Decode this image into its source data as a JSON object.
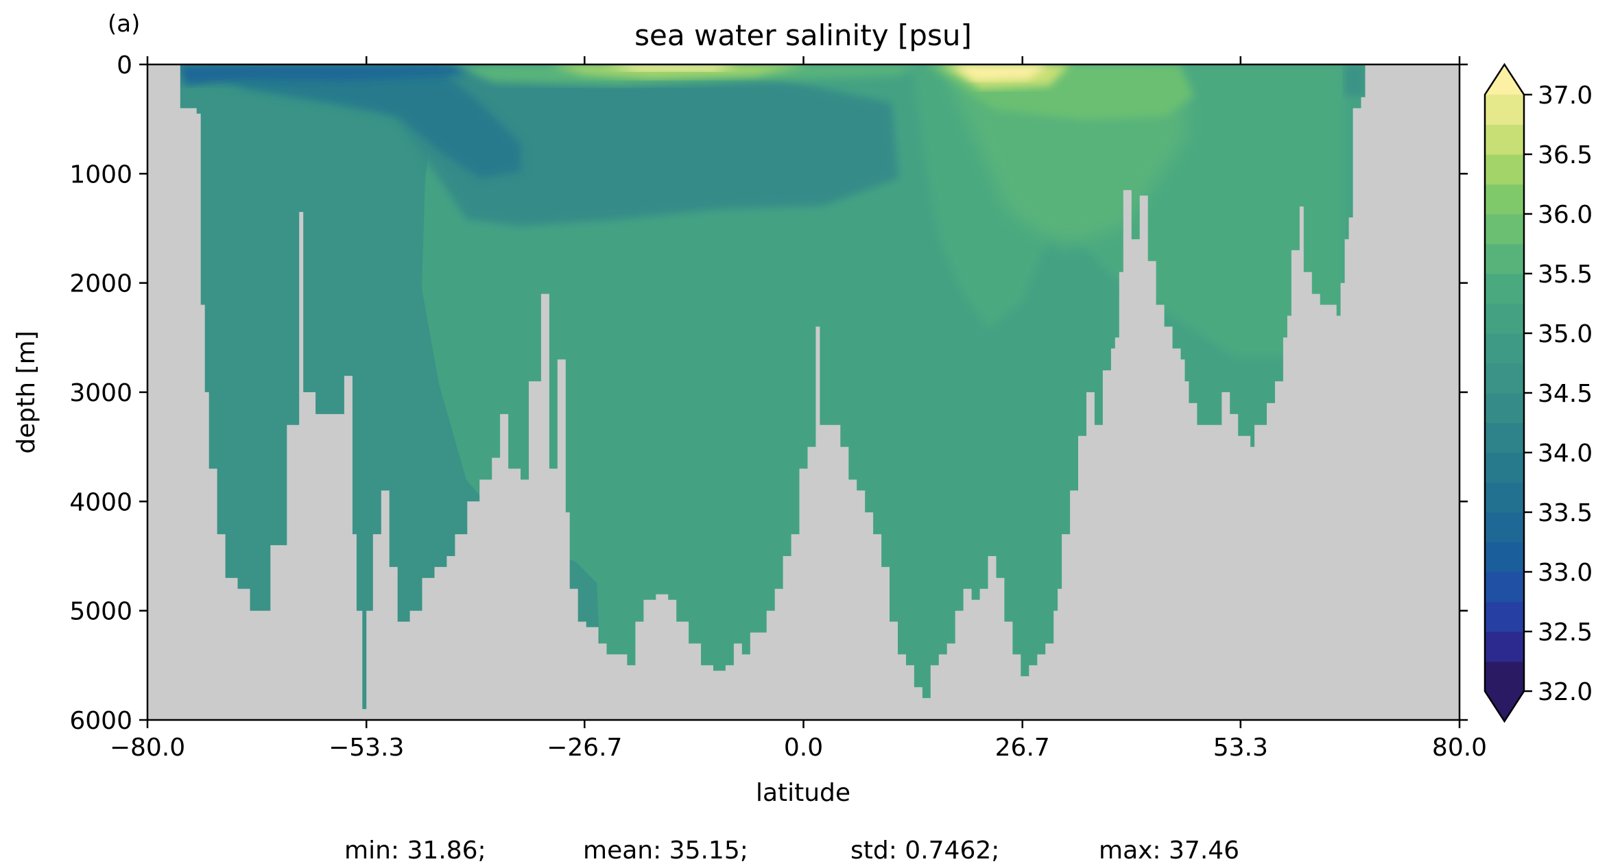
{
  "chart_data": {
    "type": "heatmap",
    "panel_label": "(a)",
    "title": "sea water salinity [psu]",
    "xlabel": "latitude",
    "ylabel": "depth [m]",
    "xlim": [
      -80.0,
      80.0
    ],
    "ylim": [
      6000,
      0
    ],
    "y_inverted": true,
    "xticks": [
      -80.0,
      -53.3,
      -26.7,
      0.0,
      26.7,
      53.3,
      80.0
    ],
    "xtick_labels": [
      "−80.0",
      "−53.3",
      "−26.7",
      "0.0",
      "26.7",
      "53.3",
      "80.0"
    ],
    "yticks": [
      0,
      1000,
      2000,
      3000,
      4000,
      5000,
      6000
    ],
    "ytick_labels": [
      "0",
      "1000",
      "2000",
      "3000",
      "4000",
      "5000",
      "6000"
    ],
    "colorbar": {
      "levels": [
        32.0,
        32.25,
        32.5,
        32.75,
        33.0,
        33.25,
        33.5,
        33.75,
        34.0,
        34.25,
        34.5,
        34.75,
        35.0,
        35.25,
        35.5,
        35.75,
        36.0,
        36.25,
        36.5,
        36.75,
        37.0
      ],
      "ticks": [
        32.0,
        32.5,
        33.0,
        33.5,
        34.0,
        34.5,
        35.0,
        35.5,
        36.0,
        36.5,
        37.0
      ],
      "tick_labels": [
        "32.0",
        "32.5",
        "33.0",
        "33.5",
        "34.0",
        "34.5",
        "35.0",
        "35.5",
        "36.0",
        "36.5",
        "37.0"
      ],
      "colors": [
        "#2a1a63",
        "#2c2a8f",
        "#263fa3",
        "#1f50a3",
        "#1b5e9c",
        "#1e6896",
        "#227190",
        "#277a8c",
        "#2e8289",
        "#358b88",
        "#3a9386",
        "#3e9a85",
        "#44a283",
        "#4ba980",
        "#58b37a",
        "#6abf72",
        "#80c96a",
        "#a3d46a",
        "#c7df75",
        "#e6e88c",
        "#fbf0a3"
      ],
      "extend": "both"
    },
    "mask_color": "#cbcbcb",
    "stats": {
      "min": "min: 31.86;",
      "mean": "mean: 35.15;",
      "std": "std: 0.7462;",
      "max": "max: 37.46"
    },
    "bathymetry": [
      [
        -80.0,
        0
      ],
      [
        -76.5,
        0
      ],
      [
        -76.0,
        400
      ],
      [
        -74.0,
        450
      ],
      [
        -73.5,
        2200
      ],
      [
        -73.0,
        3000
      ],
      [
        -72.5,
        3700
      ],
      [
        -71.5,
        4300
      ],
      [
        -70.5,
        4700
      ],
      [
        -69.0,
        4800
      ],
      [
        -67.5,
        5000
      ],
      [
        -65.5,
        5000
      ],
      [
        -65.0,
        4400
      ],
      [
        -63.0,
        3300
      ],
      [
        -61.5,
        1350
      ],
      [
        -61.0,
        3000
      ],
      [
        -59.5,
        3200
      ],
      [
        -57.5,
        3200
      ],
      [
        -56.0,
        2850
      ],
      [
        -55.0,
        4300
      ],
      [
        -54.5,
        5000
      ],
      [
        -53.8,
        5900
      ],
      [
        -53.3,
        5000
      ],
      [
        -52.5,
        4300
      ],
      [
        -51.5,
        3900
      ],
      [
        -50.5,
        4600
      ],
      [
        -49.5,
        5100
      ],
      [
        -48.0,
        5000
      ],
      [
        -46.5,
        4700
      ],
      [
        -45.0,
        4600
      ],
      [
        -43.5,
        4500
      ],
      [
        -42.5,
        4300
      ],
      [
        -41.0,
        4000
      ],
      [
        -39.5,
        3800
      ],
      [
        -38.0,
        3600
      ],
      [
        -37.0,
        3200
      ],
      [
        -36.0,
        3700
      ],
      [
        -34.5,
        3800
      ],
      [
        -33.5,
        2900
      ],
      [
        -32.0,
        2100
      ],
      [
        -31.0,
        3700
      ],
      [
        -30.0,
        2700
      ],
      [
        -29.0,
        4100
      ],
      [
        -28.5,
        4800
      ],
      [
        -27.5,
        5100
      ],
      [
        -26.5,
        5150
      ],
      [
        -25.0,
        5300
      ],
      [
        -24.0,
        5400
      ],
      [
        -22.5,
        5400
      ],
      [
        -21.5,
        5500
      ],
      [
        -20.5,
        5100
      ],
      [
        -19.5,
        4900
      ],
      [
        -18.0,
        4850
      ],
      [
        -16.5,
        4900
      ],
      [
        -15.5,
        5100
      ],
      [
        -14.0,
        5300
      ],
      [
        -12.5,
        5500
      ],
      [
        -11.0,
        5550
      ],
      [
        -9.5,
        5500
      ],
      [
        -8.5,
        5300
      ],
      [
        -7.5,
        5400
      ],
      [
        -6.5,
        5200
      ],
      [
        -4.5,
        5000
      ],
      [
        -3.5,
        4800
      ],
      [
        -2.5,
        4500
      ],
      [
        -1.5,
        4300
      ],
      [
        -0.5,
        3700
      ],
      [
        0.5,
        3500
      ],
      [
        1.5,
        2400
      ],
      [
        2.0,
        3300
      ],
      [
        3.5,
        3300
      ],
      [
        4.5,
        3500
      ],
      [
        5.5,
        3800
      ],
      [
        6.5,
        3900
      ],
      [
        7.5,
        4100
      ],
      [
        8.5,
        4300
      ],
      [
        9.5,
        4600
      ],
      [
        10.5,
        5100
      ],
      [
        11.5,
        5400
      ],
      [
        12.5,
        5500
      ],
      [
        13.5,
        5700
      ],
      [
        14.5,
        5800
      ],
      [
        15.5,
        5500
      ],
      [
        16.5,
        5400
      ],
      [
        17.5,
        5300
      ],
      [
        18.5,
        5000
      ],
      [
        19.5,
        4800
      ],
      [
        20.5,
        4900
      ],
      [
        21.5,
        4800
      ],
      [
        22.5,
        4500
      ],
      [
        23.5,
        4700
      ],
      [
        24.5,
        5100
      ],
      [
        25.5,
        5400
      ],
      [
        26.5,
        5600
      ],
      [
        27.5,
        5500
      ],
      [
        28.5,
        5400
      ],
      [
        29.5,
        5300
      ],
      [
        30.5,
        5000
      ],
      [
        31.0,
        4800
      ],
      [
        31.5,
        4300
      ],
      [
        32.5,
        3900
      ],
      [
        33.5,
        3400
      ],
      [
        34.5,
        3000
      ],
      [
        35.5,
        3300
      ],
      [
        36.5,
        2800
      ],
      [
        37.5,
        2600
      ],
      [
        38.0,
        2500
      ],
      [
        38.5,
        1900
      ],
      [
        39.0,
        1150
      ],
      [
        40.0,
        1600
      ],
      [
        41.0,
        1200
      ],
      [
        42.0,
        1800
      ],
      [
        43.0,
        2200
      ],
      [
        44.0,
        2400
      ],
      [
        45.0,
        2600
      ],
      [
        46.0,
        2700
      ],
      [
        46.5,
        2900
      ],
      [
        47.0,
        3100
      ],
      [
        48.0,
        3300
      ],
      [
        50.0,
        3300
      ],
      [
        51.0,
        3000
      ],
      [
        52.0,
        3200
      ],
      [
        53.0,
        3400
      ],
      [
        54.5,
        3500
      ],
      [
        55.0,
        3300
      ],
      [
        56.5,
        3100
      ],
      [
        57.5,
        2900
      ],
      [
        58.5,
        2500
      ],
      [
        59.0,
        2300
      ],
      [
        59.5,
        1700
      ],
      [
        60.5,
        1300
      ],
      [
        61.0,
        1900
      ],
      [
        62.0,
        2100
      ],
      [
        63.0,
        2200
      ],
      [
        64.0,
        2200
      ],
      [
        65.0,
        2300
      ],
      [
        65.5,
        2000
      ],
      [
        66.0,
        1600
      ],
      [
        66.5,
        1400
      ],
      [
        67.0,
        400
      ],
      [
        68.0,
        300
      ],
      [
        68.5,
        0
      ],
      [
        80.0,
        0
      ]
    ]
  }
}
